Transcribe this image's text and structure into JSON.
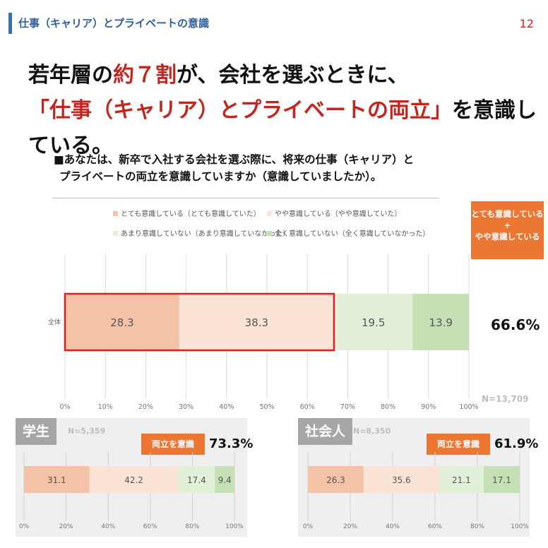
{
  "header": {
    "title": "仕事（キャリア）とプライベートの意識",
    "page_number": "12"
  },
  "headline": {
    "line1_a": "若年層の",
    "line1_b": "約７割",
    "line1_c": "が、会社を選ぶときに、",
    "line2_a": "「仕事（キャリア）とプライベートの両立」",
    "line2_b": "を意識している。"
  },
  "question": {
    "line1": "■あなたは、新卒で入社する会社を選ぶ際に、将来の仕事（キャリア）と",
    "line2": "プライベートの両立を意識していますか（意識していましたか）。"
  },
  "legend": [
    {
      "label": "とても意識している（とても意識していた）",
      "color": "#f4c2a7"
    },
    {
      "label": "やや意識している（やや意識していた）",
      "color": "#fbe3d6"
    },
    {
      "label": "あまり意識していない（あまり意識していなかった）",
      "color": "#e2f0d9"
    },
    {
      "label": "全く意識していない（全く意識していなかった）",
      "color": "#c5e0b4"
    }
  ],
  "badge": {
    "line1": "とても意識している",
    "line2": "+",
    "line3": "やや意識している"
  },
  "chart_data": [
    {
      "type": "bar",
      "orientation": "horizontal",
      "stacked": true,
      "categories": [
        "全体"
      ],
      "series": [
        {
          "name": "とても意識している（とても意識していた）",
          "values": [
            28.3
          ],
          "color": "#f4c2a7"
        },
        {
          "name": "やや意識している（やや意識していた）",
          "values": [
            38.3
          ],
          "color": "#fbe3d6"
        },
        {
          "name": "あまり意識していない（あまり意識していなかった）",
          "values": [
            19.5
          ],
          "color": "#e2f0d9"
        },
        {
          "name": "全く意識していない（全く意識していなかった）",
          "values": [
            13.9
          ],
          "color": "#c5e0b4"
        }
      ],
      "xlim": [
        0,
        100
      ],
      "xticks": [
        "0%",
        "10%",
        "20%",
        "30%",
        "40%",
        "50%",
        "60%",
        "70%",
        "80%",
        "90%",
        "100%"
      ],
      "grid": true,
      "highlight_sum": "66.6%",
      "n_label": "N=13,709"
    },
    {
      "type": "bar",
      "orientation": "horizontal",
      "stacked": true,
      "title": "学生",
      "categories": [
        ""
      ],
      "series": [
        {
          "name": "とても意識している（とても意識していた）",
          "values": [
            31.1
          ],
          "color": "#f4c2a7"
        },
        {
          "name": "やや意識している（やや意識していた）",
          "values": [
            42.2
          ],
          "color": "#fbe3d6"
        },
        {
          "name": "あまり意識していない（あまり意識していなかった）",
          "values": [
            17.4
          ],
          "color": "#e2f0d9"
        },
        {
          "name": "全く意識していない（全く意識していなかった）",
          "values": [
            9.4
          ],
          "color": "#c5e0b4"
        }
      ],
      "xlim": [
        0,
        100
      ],
      "xticks": [
        "0%",
        "20%",
        "40%",
        "60%",
        "80%",
        "100%"
      ],
      "badge_label": "両立を意識",
      "highlight_sum": "73.3%",
      "n_label": "N=5,359"
    },
    {
      "type": "bar",
      "orientation": "horizontal",
      "stacked": true,
      "title": "社会人",
      "categories": [
        ""
      ],
      "series": [
        {
          "name": "とても意識している（とても意識していた）",
          "values": [
            26.3
          ],
          "color": "#f4c2a7"
        },
        {
          "name": "やや意識している（やや意識していた）",
          "values": [
            35.6
          ],
          "color": "#fbe3d6"
        },
        {
          "name": "あまり意識していない（あまり意識していなかった）",
          "values": [
            21.1
          ],
          "color": "#e2f0d9"
        },
        {
          "name": "全く意識していない（全く意識していなかった）",
          "values": [
            17.1
          ],
          "color": "#c5e0b4"
        }
      ],
      "xlim": [
        0,
        100
      ],
      "xticks": [
        "0%",
        "20%",
        "40%",
        "60%",
        "80%",
        "100%"
      ],
      "badge_label": "両立を意識",
      "highlight_sum": "61.9%",
      "n_label": "N=8,350"
    }
  ],
  "colors": {
    "accent": "#ec7733",
    "headline_red": "#c2261e",
    "header_blue": "#3a6fb0",
    "highlight_box": "#e02020"
  }
}
